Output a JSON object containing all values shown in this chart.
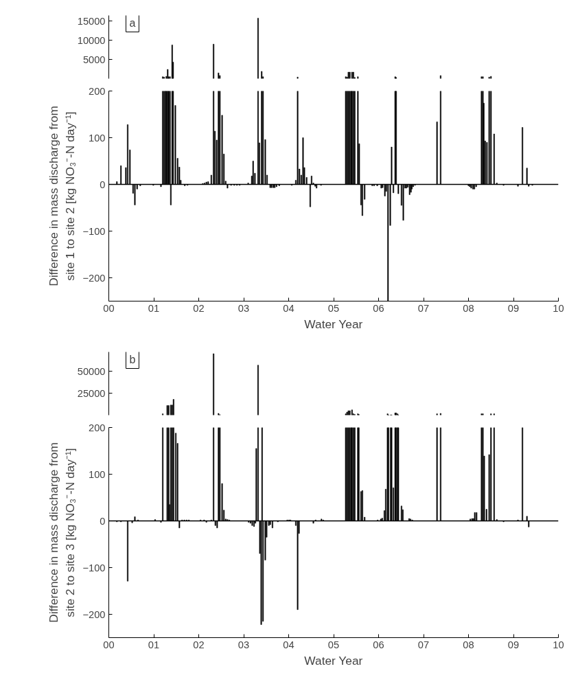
{
  "chart_data": [
    {
      "type": "bar",
      "color": "#000000",
      "xlim": [
        0,
        10
      ],
      "ylim": [
        0,
        16500
      ],
      "yticks": [
        5000,
        10000,
        15000
      ],
      "tick_labels": "y",
      "annotations": [
        "a"
      ],
      "x": [
        1.2,
        1.23,
        1.26,
        1.28,
        1.31,
        1.33,
        1.36,
        1.41,
        1.43,
        2.33,
        2.44,
        2.47,
        3.32,
        3.4,
        3.43,
        4.2,
        5.27,
        5.3,
        5.33,
        5.36,
        5.39,
        5.41,
        5.44,
        5.47,
        5.54,
        6.37,
        6.39,
        7.38,
        8.29,
        8.32,
        8.46,
        8.5
      ],
      "values": [
        500,
        400,
        null,
        600,
        2400,
        500,
        500,
        8800,
        4300,
        9000,
        1500,
        800,
        15800,
        1900,
        500,
        400,
        500,
        400,
        1700,
        1700,
        null,
        1700,
        1700,
        300,
        500,
        500,
        300,
        800,
        500,
        500,
        400,
        600
      ]
    },
    {
      "type": "bar",
      "color": "#000000",
      "xlim": [
        0,
        10
      ],
      "ylim": [
        -250,
        200
      ],
      "yticks": [
        -200,
        -100,
        0,
        100,
        200
      ],
      "xticks": [
        {
          "value": 0,
          "label": "00"
        },
        {
          "value": 1,
          "label": "01"
        },
        {
          "value": 2,
          "label": "02"
        },
        {
          "value": 3,
          "label": "03"
        },
        {
          "value": 4,
          "label": "04"
        },
        {
          "value": 5,
          "label": "05"
        },
        {
          "value": 6,
          "label": "06"
        },
        {
          "value": 7,
          "label": "07"
        },
        {
          "value": 8,
          "label": "08"
        },
        {
          "value": 9,
          "label": "09"
        },
        10
      ],
      "xlabel": "Water Year",
      "ylabel": "Difference in mass discharge from site 1 to site 2 [kg NO₃⁻-N day⁻¹]",
      "ref_lines": [
        {
          "axis": "y",
          "value": 0
        }
      ],
      "x": [
        0.18,
        0.27,
        0.38,
        0.42,
        0.47,
        0.54,
        0.58,
        0.63,
        0.7,
        0.99,
        1.16,
        1.2,
        1.23,
        1.26,
        1.28,
        1.31,
        1.33,
        1.36,
        1.38,
        1.41,
        1.43,
        1.48,
        1.53,
        1.57,
        1.6,
        1.69,
        1.75,
        2.09,
        2.13,
        2.17,
        2.21,
        2.28,
        2.33,
        2.36,
        2.4,
        2.44,
        2.47,
        2.52,
        2.56,
        2.6,
        2.64,
        2.72,
        2.79,
        2.85,
        2.91,
        3.1,
        3.18,
        3.21,
        3.25,
        3.32,
        3.35,
        3.4,
        3.43,
        3.48,
        3.52,
        3.59,
        3.62,
        3.66,
        3.69,
        3.73,
        3.79,
        4.07,
        4.16,
        4.2,
        4.24,
        4.28,
        4.32,
        4.35,
        4.4,
        4.48,
        4.51,
        4.55,
        4.59,
        4.62,
        4.72,
        5.27,
        5.3,
        5.33,
        5.36,
        5.39,
        5.41,
        5.44,
        5.47,
        5.54,
        5.57,
        5.61,
        5.64,
        5.69,
        5.86,
        5.9,
        5.97,
        6.06,
        6.09,
        6.14,
        6.17,
        6.21,
        6.26,
        6.29,
        6.33,
        6.37,
        6.39,
        6.44,
        6.51,
        6.55,
        6.59,
        6.62,
        6.65,
        6.69,
        6.72,
        6.74,
        6.77,
        6.81,
        7.3,
        7.38,
        8.0,
        8.03,
        8.06,
        8.1,
        8.13,
        8.17,
        8.29,
        8.32,
        8.34,
        8.37,
        8.41,
        8.46,
        8.5,
        8.57,
        8.63,
        8.78,
        9.1,
        9.2,
        9.3,
        9.34,
        9.42
      ],
      "values": [
        6,
        40,
        36,
        128,
        74,
        -19,
        -44,
        -10,
        -3,
        -2,
        -5,
        200,
        200,
        200,
        200,
        200,
        200,
        200,
        -44,
        200,
        200,
        169,
        56,
        37,
        9,
        -3,
        -2,
        2,
        3,
        5,
        6,
        20,
        200,
        114,
        95,
        200,
        200,
        148,
        65,
        7,
        -8,
        -2,
        -2,
        -2,
        -2,
        3,
        18,
        50,
        24,
        200,
        89,
        200,
        200,
        96,
        20,
        -7,
        -7,
        -7,
        -7,
        -5,
        -3,
        -2,
        9,
        200,
        33,
        20,
        100,
        36,
        15,
        -48,
        18,
        3,
        -4,
        -8,
        -2,
        200,
        200,
        200,
        200,
        200,
        200,
        200,
        200,
        200,
        87,
        -44,
        -67,
        -32,
        -3,
        -3,
        -3,
        -8,
        -7,
        -25,
        -15,
        -250,
        -88,
        80,
        -18,
        200,
        200,
        -20,
        -45,
        -77,
        -8,
        -8,
        -6,
        -22,
        -17,
        -10,
        -5,
        -2,
        134,
        200,
        -3,
        -5,
        -8,
        -10,
        -10,
        -5,
        200,
        200,
        174,
        93,
        90,
        200,
        200,
        108,
        3,
        -2,
        -4,
        122,
        35,
        -4,
        -2
      ]
    },
    {
      "type": "bar",
      "color": "#000000",
      "xlim": [
        0,
        10
      ],
      "ylim": [
        0,
        72000
      ],
      "yticks": [
        25000,
        50000
      ],
      "tick_labels": "y",
      "annotations": [
        "b"
      ],
      "x": [
        1.2,
        1.3,
        1.33,
        1.38,
        1.41,
        1.44,
        2.33,
        2.44,
        2.47,
        3.32,
        3.41,
        5.27,
        5.3,
        5.33,
        5.36,
        5.39,
        5.41,
        5.44,
        5.47,
        5.54,
        5.56,
        6.2,
        6.22,
        6.27,
        6.29,
        6.37,
        6.39,
        6.42,
        6.44,
        7.3,
        7.38,
        8.29,
        8.32,
        8.5,
        8.57
      ],
      "values": [
        1500,
        11000,
        11000,
        11500,
        11500,
        18000,
        70000,
        2000,
        500,
        57000,
        null,
        1500,
        3500,
        5000,
        5000,
        null,
        6000,
        1500,
        800,
        1500,
        800,
        1500,
        300,
        300,
        300,
        2500,
        2500,
        1500,
        300,
        1500,
        2000,
        1500,
        1500,
        1500,
        1500
      ]
    },
    {
      "type": "bar",
      "color": "#000000",
      "xlim": [
        0,
        10
      ],
      "ylim": [
        -250,
        200
      ],
      "yticks": [
        -200,
        -100,
        0,
        100,
        200
      ],
      "xticks": [
        {
          "value": 0,
          "label": "00"
        },
        {
          "value": 1,
          "label": "01"
        },
        {
          "value": 2,
          "label": "02"
        },
        {
          "value": 3,
          "label": "03"
        },
        {
          "value": 4,
          "label": "04"
        },
        {
          "value": 5,
          "label": "05"
        },
        {
          "value": 6,
          "label": "06"
        },
        {
          "value": 7,
          "label": "07"
        },
        {
          "value": 8,
          "label": "08"
        },
        {
          "value": 9,
          "label": "09"
        },
        10
      ],
      "xlabel": "Water Year",
      "ylabel": "Difference in mass discharge from site 2 to site 3 [kg NO₃⁻-N day⁻¹]",
      "ref_lines": [
        {
          "axis": "y",
          "value": 0
        }
      ],
      "x": [
        0.18,
        0.27,
        0.42,
        0.52,
        0.58,
        0.65,
        0.71,
        1.03,
        1.16,
        1.2,
        1.3,
        1.33,
        1.35,
        1.38,
        1.41,
        1.44,
        1.49,
        1.53,
        1.57,
        1.63,
        1.68,
        1.73,
        1.78,
        2.04,
        2.12,
        2.17,
        2.28,
        2.33,
        2.37,
        2.41,
        2.44,
        2.47,
        2.52,
        2.56,
        2.6,
        2.64,
        2.68,
        3.11,
        3.15,
        3.19,
        3.23,
        3.26,
        3.28,
        3.32,
        3.36,
        3.39,
        3.41,
        3.43,
        3.48,
        3.51,
        3.56,
        3.59,
        3.64,
        3.76,
        3.97,
        4.01,
        4.04,
        4.16,
        4.2,
        4.23,
        4.55,
        4.6,
        4.73,
        4.77,
        5.27,
        5.3,
        5.33,
        5.36,
        5.39,
        5.41,
        5.44,
        5.47,
        5.54,
        5.56,
        5.61,
        5.64,
        5.69,
        5.98,
        6.05,
        6.08,
        6.13,
        6.16,
        6.2,
        6.22,
        6.27,
        6.29,
        6.33,
        6.37,
        6.39,
        6.42,
        6.44,
        6.51,
        6.54,
        6.68,
        6.71,
        6.75,
        7.3,
        7.38,
        8.04,
        8.08,
        8.11,
        8.14,
        8.18,
        8.29,
        8.32,
        8.35,
        8.4,
        8.46,
        8.5,
        8.57,
        8.63,
        8.78,
        9.1,
        9.2,
        9.3,
        9.34
      ],
      "values": [
        -2,
        -2,
        -129,
        -4,
        9,
        2,
        null,
        3,
        -3,
        200,
        200,
        200,
        35,
        200,
        200,
        200,
        188,
        166,
        -15,
        2,
        2,
        2,
        2,
        2,
        2,
        -3,
        2,
        200,
        -10,
        -15,
        200,
        200,
        80,
        23,
        4,
        3,
        2,
        -3,
        -5,
        -10,
        -12,
        -5,
        155,
        200,
        -70,
        -222,
        200,
        -215,
        -84,
        -35,
        -10,
        -8,
        -15,
        -2,
        2,
        2,
        2,
        -10,
        -190,
        -27,
        -5,
        2,
        4,
        2,
        200,
        200,
        200,
        200,
        200,
        200,
        200,
        200,
        200,
        200,
        63,
        65,
        8,
        2,
        4,
        6,
        22,
        68,
        200,
        200,
        200,
        200,
        71,
        200,
        200,
        200,
        200,
        32,
        24,
        5,
        4,
        2,
        200,
        200,
        4,
        5,
        5,
        18,
        18,
        200,
        200,
        139,
        25,
        142,
        200,
        200,
        3,
        -2,
        2,
        200,
        10,
        -13
      ]
    }
  ]
}
